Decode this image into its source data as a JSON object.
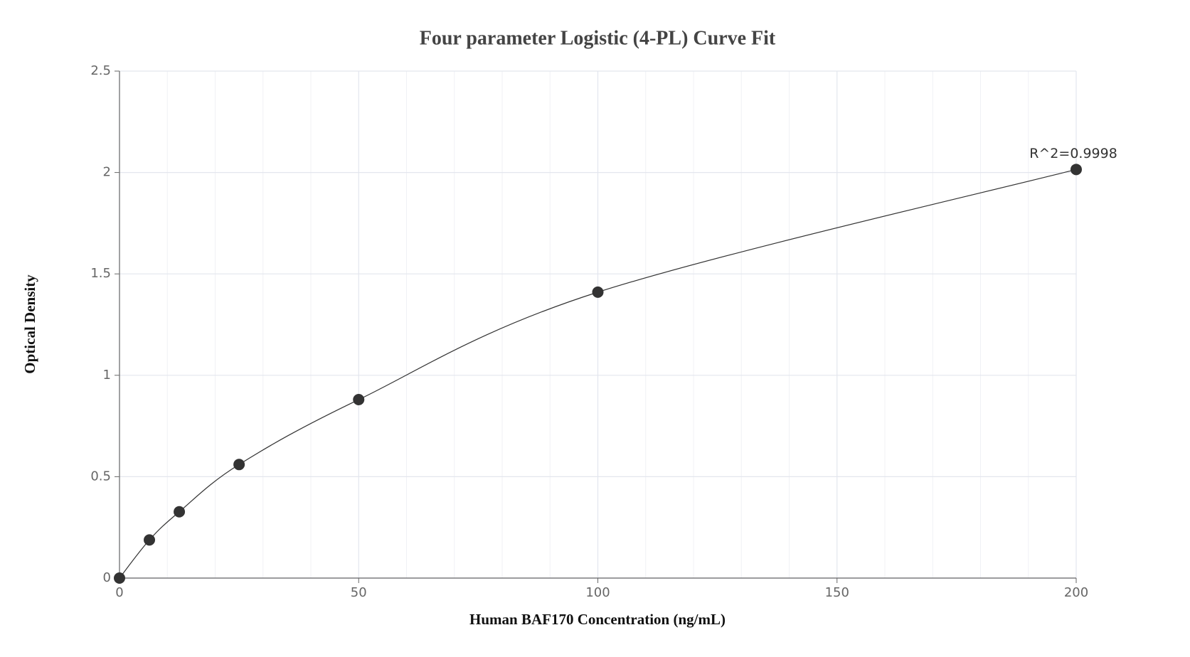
{
  "chart_data": {
    "type": "scatter",
    "title": "Four parameter Logistic (4-PL) Curve Fit",
    "x_label": "Human BAF170 Concentration (ng/mL)",
    "y_label": "Optical Density",
    "annotation": "R^2=0.9998",
    "x": [
      0,
      6.25,
      12.5,
      25,
      50,
      100,
      200
    ],
    "series": [
      {
        "color": "#333333",
        "values": [
          0,
          0.188,
          0.327,
          0.56,
          0.88,
          1.41,
          2.015
        ]
      }
    ],
    "xlim": [
      0,
      200
    ],
    "xticks": [
      0,
      50,
      100,
      150,
      200
    ],
    "ylim": [
      0,
      2.5
    ],
    "yticks": [
      0,
      0.5,
      1,
      1.5,
      2,
      2.5
    ],
    "grid": true
  }
}
